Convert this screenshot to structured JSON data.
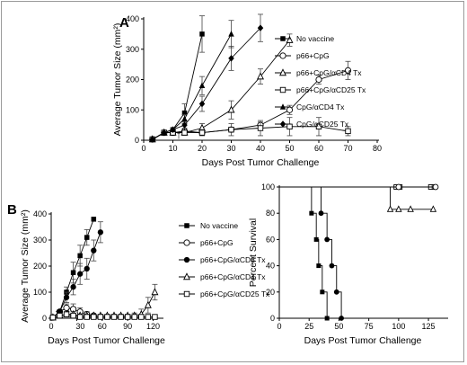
{
  "chart_data": [
    {
      "panel_label": "A",
      "type": "line",
      "xlabel": "Days Post Tumor Challenge",
      "ylabel": "Average Tumor Size (mm²)",
      "xlim": [
        0,
        80
      ],
      "ylim": [
        0,
        400
      ],
      "xticks": [
        "0",
        "10",
        "20",
        "30",
        "40",
        "50",
        "60",
        "70",
        "80"
      ],
      "yticks": [
        "0",
        "100",
        "200",
        "300",
        "400"
      ],
      "grid": false,
      "legend_position": "right",
      "annotations": [
        "↑"
      ],
      "series": [
        {
          "name": "No vaccine",
          "marker": "filled-square",
          "x": [
            3,
            7,
            10,
            14,
            20
          ],
          "y": [
            3,
            25,
            35,
            90,
            350
          ],
          "err": [
            0,
            3,
            5,
            30,
            60
          ]
        },
        {
          "name": "p66+CpG",
          "marker": "open-circle",
          "x": [
            3,
            7,
            10,
            14,
            20,
            30,
            40,
            50,
            60,
            70
          ],
          "y": [
            3,
            25,
            25,
            30,
            25,
            35,
            50,
            100,
            200,
            230
          ],
          "err": [
            0,
            3,
            3,
            5,
            5,
            8,
            10,
            15,
            15,
            30
          ]
        },
        {
          "name": "p66+CpG/αCD4 Tx",
          "marker": "open-triangle",
          "x": [
            3,
            7,
            10,
            14,
            20,
            30,
            40,
            50
          ],
          "y": [
            3,
            25,
            25,
            25,
            40,
            100,
            210,
            330
          ],
          "err": [
            0,
            3,
            3,
            5,
            15,
            30,
            25,
            20
          ]
        },
        {
          "name": "p66+CpG/αCD25 Tx",
          "marker": "open-square",
          "x": [
            3,
            7,
            10,
            14,
            20,
            30,
            40,
            50,
            60,
            70
          ],
          "y": [
            3,
            25,
            25,
            25,
            25,
            35,
            40,
            45,
            45,
            30
          ],
          "err": [
            0,
            3,
            3,
            5,
            10,
            20,
            25,
            30,
            30,
            15
          ]
        },
        {
          "name": "CpG/αCD4 Tx",
          "marker": "filled-triangle",
          "x": [
            3,
            7,
            10,
            14,
            20,
            30
          ],
          "y": [
            3,
            25,
            35,
            70,
            180,
            350
          ],
          "err": [
            0,
            3,
            5,
            15,
            30,
            45
          ]
        },
        {
          "name": "CpG/αCD25 Tx",
          "marker": "filled-diamond",
          "x": [
            3,
            7,
            10,
            14,
            20,
            30,
            40
          ],
          "y": [
            3,
            25,
            35,
            50,
            120,
            270,
            370
          ],
          "err": [
            0,
            3,
            5,
            10,
            25,
            40,
            45
          ]
        }
      ]
    },
    {
      "panel_label": "B",
      "type": "line",
      "xlabel": "Days Post Tumor Challenge",
      "ylabel": "Average Tumor Size (mm²)",
      "xlim": [
        0,
        130
      ],
      "ylim": [
        0,
        400
      ],
      "xticks": [
        "0",
        "30",
        "60",
        "90",
        "120"
      ],
      "yticks": [
        "0",
        "100",
        "200",
        "300",
        "400"
      ],
      "grid": false,
      "legend_position": "right",
      "annotations": [
        "↑",
        "↑",
        "↑"
      ],
      "series": [
        {
          "name": "No vaccine",
          "marker": "filled-square",
          "x": [
            2,
            10,
            18,
            26,
            34,
            42,
            50
          ],
          "y": [
            3,
            25,
            100,
            175,
            240,
            310,
            380
          ],
          "err": [
            0,
            5,
            20,
            40,
            40,
            30,
            0
          ]
        },
        {
          "name": "p66+CpG",
          "marker": "open-circle",
          "x": [
            2,
            10,
            18,
            26,
            34,
            42,
            50
          ],
          "y": [
            3,
            25,
            40,
            35,
            25,
            15,
            10
          ],
          "err": [
            0,
            5,
            15,
            20,
            15,
            10,
            5
          ]
        },
        {
          "name": "p66+CpG/αCD8 Tx",
          "marker": "filled-circle",
          "x": [
            2,
            10,
            18,
            26,
            34,
            42,
            50,
            58
          ],
          "y": [
            3,
            25,
            80,
            120,
            170,
            190,
            260,
            330
          ],
          "err": [
            0,
            5,
            20,
            30,
            40,
            40,
            40,
            40
          ]
        },
        {
          "name": "p66+CpG/αCD4 Tx",
          "marker": "open-triangle",
          "x": [
            2,
            10,
            18,
            26,
            34,
            42,
            50,
            58,
            66,
            74,
            82,
            90,
            98,
            106,
            114,
            122
          ],
          "y": [
            3,
            10,
            15,
            15,
            10,
            10,
            10,
            10,
            10,
            10,
            10,
            10,
            10,
            15,
            50,
            100
          ],
          "err": [
            0,
            5,
            10,
            10,
            5,
            5,
            5,
            5,
            5,
            5,
            5,
            5,
            10,
            20,
            30,
            30
          ]
        },
        {
          "name": "p66+CpG/αCD25 Tx",
          "marker": "open-square",
          "x": [
            2,
            10,
            18,
            26,
            34,
            42,
            50,
            58,
            66,
            74,
            82,
            90,
            98,
            106,
            114,
            122
          ],
          "y": [
            3,
            10,
            15,
            10,
            5,
            5,
            5,
            5,
            5,
            5,
            5,
            5,
            5,
            5,
            5,
            5
          ],
          "err": [
            0,
            5,
            5,
            5,
            3,
            3,
            3,
            3,
            3,
            3,
            3,
            3,
            3,
            3,
            3,
            3
          ]
        }
      ]
    },
    {
      "panel_label": "",
      "type": "line",
      "step": true,
      "xlabel": "Days Post Tumor Challenge",
      "ylabel": "Percent Survival",
      "xlim": [
        0,
        140
      ],
      "ylim": [
        0,
        100
      ],
      "xticks": [
        "0",
        "25",
        "50",
        "75",
        "100",
        "125"
      ],
      "yticks": [
        "0",
        "20",
        "40",
        "60",
        "80",
        "100"
      ],
      "grid": false,
      "legend_position": "none",
      "series": [
        {
          "marker": "filled-square",
          "steps": [
            [
              0,
              100
            ],
            [
              27,
              100
            ],
            [
              27,
              80
            ],
            [
              31,
              80
            ],
            [
              31,
              60
            ],
            [
              33,
              60
            ],
            [
              33,
              40
            ],
            [
              36,
              40
            ],
            [
              36,
              20
            ],
            [
              40,
              20
            ],
            [
              40,
              0
            ],
            [
              42,
              0
            ]
          ],
          "markers": [
            [
              27,
              80
            ],
            [
              31,
              60
            ],
            [
              33,
              40
            ],
            [
              36,
              20
            ],
            [
              40,
              0
            ]
          ]
        },
        {
          "marker": "filled-circle",
          "steps": [
            [
              0,
              100
            ],
            [
              35,
              100
            ],
            [
              35,
              80
            ],
            [
              40,
              80
            ],
            [
              40,
              60
            ],
            [
              44,
              60
            ],
            [
              44,
              40
            ],
            [
              48,
              40
            ],
            [
              48,
              20
            ],
            [
              52,
              20
            ],
            [
              52,
              0
            ],
            [
              54,
              0
            ]
          ],
          "markers": [
            [
              35,
              80
            ],
            [
              40,
              60
            ],
            [
              44,
              40
            ],
            [
              48,
              20
            ],
            [
              52,
              0
            ]
          ]
        },
        {
          "marker": "open-triangle",
          "steps": [
            [
              0,
              100
            ],
            [
              93,
              100
            ],
            [
              93,
              83
            ],
            [
              130,
              83
            ]
          ],
          "markers": [
            [
              93,
              83
            ],
            [
              100,
              83
            ],
            [
              110,
              83
            ],
            [
              129,
              83
            ]
          ]
        },
        {
          "marker": "open-square",
          "steps": [
            [
              0,
              100
            ],
            [
              130,
              100
            ]
          ],
          "markers": [
            [
              98,
              100
            ],
            [
              101,
              100
            ],
            [
              127,
              100
            ],
            [
              130,
              100
            ]
          ]
        },
        {
          "marker": "open-circle",
          "steps": [
            [
              0,
              100
            ],
            [
              130,
              100
            ]
          ],
          "markers": [
            [
              100,
              100
            ],
            [
              131,
              100
            ]
          ]
        }
      ]
    }
  ]
}
